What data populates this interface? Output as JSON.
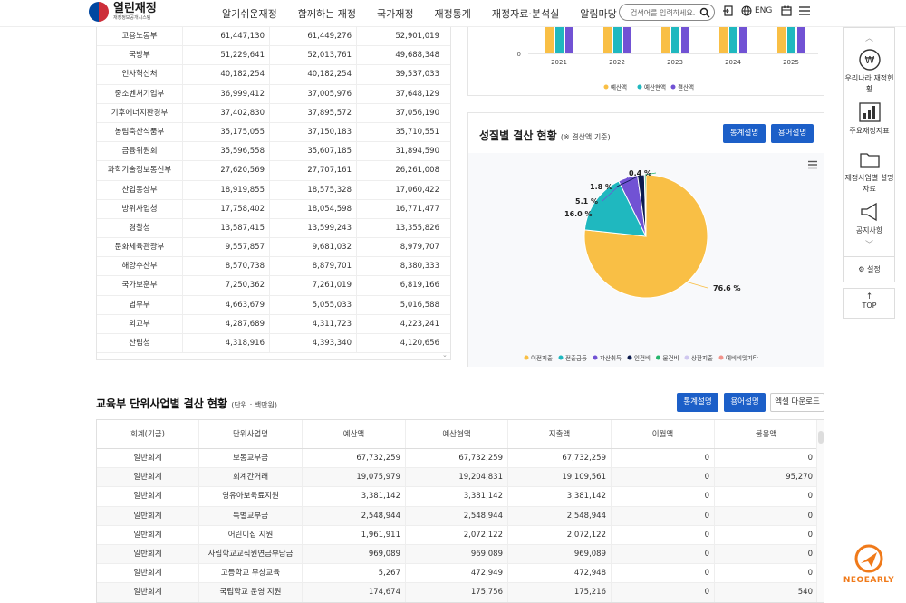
{
  "header": {
    "logo_main": "열린재정",
    "logo_sub": "재정정보공개시스템",
    "nav": [
      "알기쉬운재정",
      "함께하는 재정",
      "국가재정",
      "재정통계",
      "재정자료·분석실",
      "알림마당"
    ],
    "search_placeholder": "검색어를 입력하세요.",
    "lang": "ENG"
  },
  "top_table": {
    "rows": [
      [
        "고용노동부",
        "61,447,130",
        "61,449,276",
        "52,901,019"
      ],
      [
        "국방부",
        "51,229,641",
        "52,013,761",
        "49,688,348"
      ],
      [
        "인사혁신처",
        "40,182,254",
        "40,182,254",
        "39,537,033"
      ],
      [
        "중소벤처기업부",
        "36,999,412",
        "37,005,976",
        "37,648,129"
      ],
      [
        "기후에너지환경부",
        "37,402,830",
        "37,895,572",
        "37,056,190"
      ],
      [
        "농림축산식품부",
        "35,175,055",
        "37,150,183",
        "35,710,551"
      ],
      [
        "금융위원회",
        "35,596,558",
        "35,607,185",
        "31,894,590"
      ],
      [
        "과학기술정보통신부",
        "27,620,569",
        "27,707,161",
        "26,261,008"
      ],
      [
        "산업통상부",
        "18,919,855",
        "18,575,328",
        "17,060,422"
      ],
      [
        "방위사업청",
        "17,758,402",
        "18,054,598",
        "16,771,477"
      ],
      [
        "경찰청",
        "13,587,415",
        "13,599,243",
        "13,355,826"
      ],
      [
        "문화체육관광부",
        "9,557,857",
        "9,681,032",
        "8,979,707"
      ],
      [
        "해양수산부",
        "8,570,738",
        "8,879,701",
        "8,380,333"
      ],
      [
        "국가보훈부",
        "7,250,362",
        "7,261,019",
        "6,819,166"
      ],
      [
        "법무부",
        "4,663,679",
        "5,055,033",
        "5,016,588"
      ],
      [
        "외교부",
        "4,287,689",
        "4,311,723",
        "4,223,241"
      ],
      [
        "산림청",
        "4,318,916",
        "4,393,340",
        "4,120,656"
      ]
    ]
  },
  "bar_chart": {
    "zero_label": "0",
    "years": [
      "2021",
      "2022",
      "2023",
      "2024",
      "2025"
    ],
    "legend": [
      {
        "name": "예산액",
        "color": "#f9bf45"
      },
      {
        "name": "예산현액",
        "color": "#1fb8bf"
      },
      {
        "name": "결산액",
        "color": "#7152d4"
      }
    ]
  },
  "pie_section": {
    "title": "성질별 결산 현황",
    "note": "(※ 결산액 기준)",
    "btn_stats": "통계설명",
    "btn_terms": "용어설명"
  },
  "chart_data": {
    "type": "pie",
    "labels": [
      "이전지출",
      "전출금등",
      "자산취득",
      "인건비",
      "물건비",
      "상환지출",
      "예비비및기타"
    ],
    "values": [
      76.6,
      16.0,
      5.1,
      1.8,
      0.4,
      0.0,
      0.0
    ],
    "value_labels": [
      "76.6 %",
      "16.0 %",
      "5.1 %",
      "1.8 %",
      "0.4 %",
      "",
      ""
    ],
    "colors": [
      "#f9bf45",
      "#1fb8bf",
      "#7152d4",
      "#0b1a4e",
      "#25b56c",
      "#cfc7ef",
      "#f2938b"
    ],
    "legend_position": "bottom"
  },
  "section2": {
    "title": "교육부 단위사업별 결산 현황",
    "unit": "(단위 : 백만원)",
    "btn_stats": "통계설명",
    "btn_terms": "용어설명",
    "btn_excel": "엑셀 다운로드",
    "headers": [
      "회계(기금)",
      "단위사업명",
      "예산액",
      "예산현액",
      "지출액",
      "이월액",
      "불용액"
    ],
    "rows": [
      [
        "일반회계",
        "보통교부금",
        "67,732,259",
        "67,732,259",
        "67,732,259",
        "0",
        "0"
      ],
      [
        "일반회계",
        "회계간거래",
        "19,075,979",
        "19,204,831",
        "19,109,561",
        "0",
        "95,270"
      ],
      [
        "일반회계",
        "영유아보육료지원",
        "3,381,142",
        "3,381,142",
        "3,381,142",
        "0",
        "0"
      ],
      [
        "일반회계",
        "특별교부금",
        "2,548,944",
        "2,548,944",
        "2,548,944",
        "0",
        "0"
      ],
      [
        "일반회계",
        "어린이집 지원",
        "1,961,911",
        "2,072,122",
        "2,072,122",
        "0",
        "0"
      ],
      [
        "일반회계",
        "사립학교교직원연금부담금",
        "969,089",
        "969,089",
        "969,089",
        "0",
        "0"
      ],
      [
        "일반회계",
        "고등학교 무상교육",
        "5,267",
        "472,949",
        "472,948",
        "0",
        "0"
      ],
      [
        "일반회계",
        "국립학교 운영 지원",
        "174,674",
        "175,756",
        "175,216",
        "0",
        "540"
      ]
    ]
  },
  "side_panel": {
    "items": [
      "우리나라 재정현황",
      "주요재정지표",
      "재정사업별 설명자료",
      "공지사항"
    ],
    "settings": "설정",
    "top": "TOP"
  },
  "badge": "NEOEARLY"
}
